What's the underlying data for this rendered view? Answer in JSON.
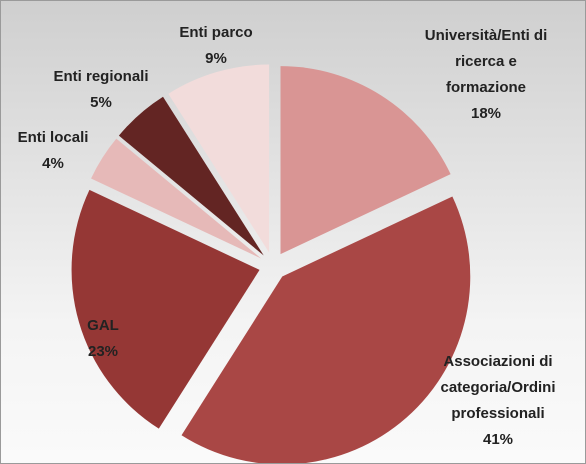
{
  "chart_data": {
    "type": "pie",
    "categories": [
      "Università/Enti di ricerca e formazione",
      "Associazioni di categoria/Ordini professionali",
      "GAL",
      "Enti locali",
      "Enti regionali",
      "Enti parco"
    ],
    "values": [
      18,
      41,
      23,
      4,
      5,
      9
    ],
    "value_labels": [
      "18%",
      "41%",
      "23%",
      "4%",
      "5%",
      "9%"
    ],
    "colors": [
      "#d99594",
      "#a94745",
      "#953735",
      "#e6b9b8",
      "#632523",
      "#f2dcdb"
    ]
  }
}
